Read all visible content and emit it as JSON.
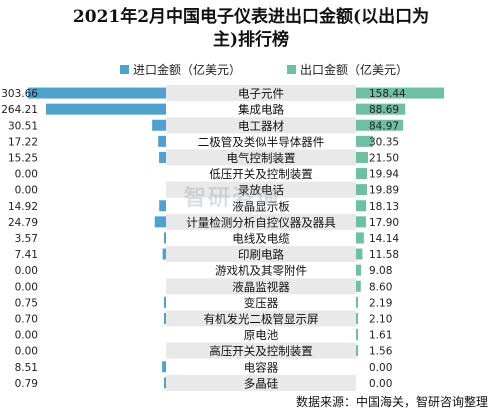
{
  "title_line1": "2021年2月中国电子仪表进出口金额(以出口为",
  "title_line2": "主)排行榜",
  "watermark": "智研咨询",
  "source": "数据来源：中国海关，智研咨询整理",
  "colors": {
    "import": "#4fa2cc",
    "export": "#6fbfa2",
    "label_band": "#e9e9e9"
  },
  "chart_data": {
    "type": "bar",
    "categories": [
      "电子元件",
      "集成电路",
      "电工器材",
      "二极管及类似半导体器件",
      "电气控制装置",
      "低压开关及控制装置",
      "录放电话",
      "液晶显示板",
      "计量检测分析自控仪器及器具",
      "电线及电缆",
      "印刷电路",
      "游戏机及其零附件",
      "液晶监视器",
      "变压器",
      "有机发光二极管显示屏",
      "原电池",
      "高压开关及控制装置",
      "电容器",
      "多晶硅"
    ],
    "series": [
      {
        "name": "进口金额（亿美元）",
        "key": "import",
        "values": [
          303.66,
          264.21,
          30.51,
          17.22,
          15.25,
          0.0,
          0.0,
          14.92,
          24.79,
          3.57,
          7.41,
          0.0,
          0.0,
          0.75,
          0.7,
          0.0,
          0.0,
          8.51,
          0.79
        ]
      },
      {
        "name": "出口金额（亿美元）",
        "key": "export",
        "values": [
          158.44,
          88.69,
          84.97,
          30.35,
          21.5,
          19.94,
          19.89,
          18.13,
          17.9,
          14.14,
          11.58,
          9.08,
          8.6,
          2.19,
          2.1,
          1.61,
          1.56,
          0.0,
          0.0
        ]
      }
    ]
  }
}
